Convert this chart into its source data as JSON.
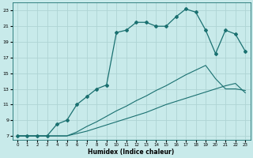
{
  "xlabel": "Humidex (Indice chaleur)",
  "bg_color": "#c8eaea",
  "grid_color": "#aed4d4",
  "line_color": "#1a7070",
  "xlim": [
    -0.5,
    23.5
  ],
  "ylim": [
    6.5,
    24
  ],
  "xticks": [
    0,
    1,
    2,
    3,
    4,
    5,
    6,
    7,
    8,
    9,
    10,
    11,
    12,
    13,
    14,
    15,
    16,
    17,
    18,
    19,
    20,
    21,
    22,
    23
  ],
  "yticks": [
    7,
    9,
    11,
    13,
    15,
    17,
    19,
    21,
    23
  ],
  "line1_x": [
    0,
    1,
    2,
    3,
    4,
    5,
    6,
    7,
    8,
    9,
    10,
    11,
    12,
    13,
    14,
    15,
    16,
    17,
    18,
    19,
    20,
    21,
    22,
    23
  ],
  "line1_y": [
    7,
    7,
    7,
    7,
    7,
    7,
    7.3,
    7.6,
    8.0,
    8.4,
    8.8,
    9.2,
    9.6,
    10.0,
    10.5,
    11.0,
    11.4,
    11.8,
    12.2,
    12.6,
    13.0,
    13.4,
    13.7,
    12.5
  ],
  "line2_x": [
    0,
    1,
    2,
    3,
    4,
    5,
    6,
    7,
    8,
    9,
    10,
    11,
    12,
    13,
    14,
    15,
    16,
    17,
    18,
    19,
    20,
    21,
    22,
    23
  ],
  "line2_y": [
    7,
    7,
    7,
    7,
    7,
    7,
    7.5,
    8.2,
    8.8,
    9.5,
    10.2,
    10.8,
    11.5,
    12.1,
    12.8,
    13.4,
    14.1,
    14.8,
    15.4,
    16.0,
    14.3,
    13.0,
    13.0,
    12.8
  ],
  "line3_x": [
    0,
    1,
    2,
    3,
    4,
    5,
    6,
    7,
    8,
    9,
    10,
    11,
    12,
    13,
    14,
    15,
    16,
    17,
    18,
    19,
    20,
    21,
    22,
    23
  ],
  "line3_y": [
    7,
    7,
    7,
    7,
    8.5,
    9.0,
    11.0,
    12.0,
    13.0,
    13.5,
    20.2,
    20.5,
    21.5,
    21.5,
    21.0,
    21.0,
    22.2,
    23.2,
    22.8,
    20.5,
    17.5,
    20.5,
    20.0,
    17.8
  ],
  "marker": "D",
  "markersize": 2.0
}
